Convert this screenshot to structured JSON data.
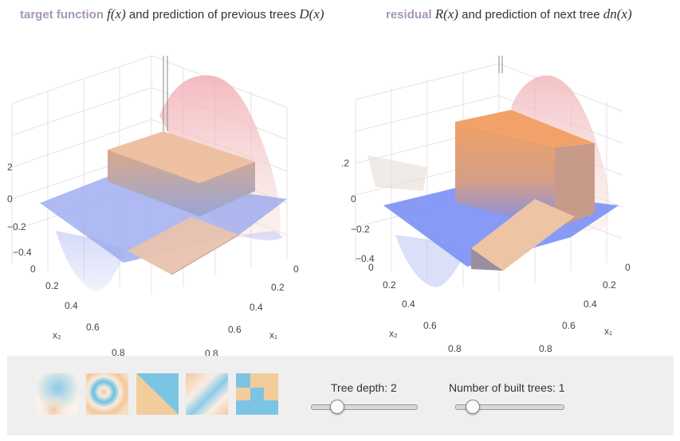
{
  "titles": {
    "left": {
      "keyword": "target function",
      "f_math": "f(x)",
      "middle": " and prediction of previous trees ",
      "d_math": "D(x)"
    },
    "right": {
      "keyword": "residual",
      "r_math": "R(x)",
      "middle": " and prediction of next tree ",
      "d_math": "dn(x)"
    }
  },
  "left_plot": {
    "z_ticks": [
      "2",
      "0",
      "−0.2",
      "−0.4"
    ],
    "x2_ticks": [
      "0",
      "0.2",
      "0.4",
      "0.6",
      "0.8"
    ],
    "x1_ticks": [
      "0",
      "0.2",
      "0.4",
      "0.6",
      "0.8"
    ],
    "x2_label": "x₂",
    "x1_label": "x₁"
  },
  "right_plot": {
    "z_ticks": [
      ".2",
      "0",
      "−0.2",
      "−0.4"
    ],
    "x2_ticks": [
      "0",
      "0.2",
      "0.4",
      "0.6",
      "0.8"
    ],
    "x1_ticks": [
      "0",
      "0.2",
      "0.4",
      "0.6",
      "0.8"
    ],
    "x2_label": "x₂",
    "x1_label": "x₁"
  },
  "controls": {
    "tree_depth_label": "Tree depth: 2",
    "tree_depth_value": 2,
    "num_trees_label": "Number of built trees: 1",
    "num_trees_value": 1
  },
  "colors": {
    "blue": "#7f95f0",
    "orange": "#f2a268",
    "pink": "#f1c3c8",
    "panel_bg": "#efefef",
    "title_keyword": "#a895b8"
  },
  "thumbnail_icons": [
    "soft-blobs-icon",
    "rings-icon",
    "diagonal-split-icon",
    "diagonal-gradient-icon",
    "checkerboard-icon"
  ]
}
